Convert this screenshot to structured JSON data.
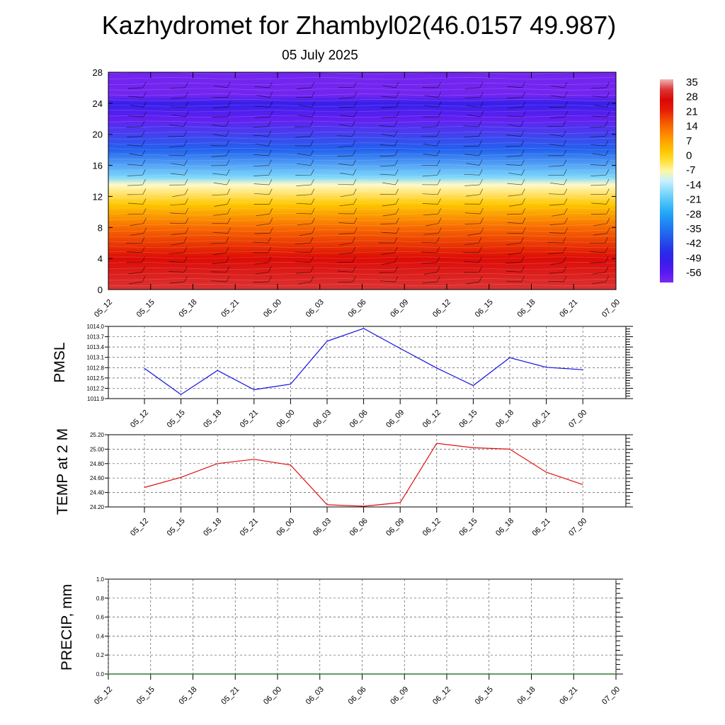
{
  "header": {
    "title": "Kazhydromet for Zhambyl02(46.0157 49.987)",
    "date": "05 July 2025"
  },
  "colors": {
    "pmsl_line": "#1010e0",
    "temp_line": "#e01010",
    "precip_line": "#2e7d32",
    "grid": "#555555",
    "contour": "#ffb0a0"
  },
  "chart_data": [
    {
      "type": "heatmap",
      "name": "cross-section",
      "title": "",
      "xlabel": "",
      "ylabel": "",
      "categories": [
        "05_12",
        "05_15",
        "05_18",
        "05_21",
        "06_00",
        "06_03",
        "06_06",
        "06_09",
        "06_12",
        "06_15",
        "06_18",
        "06_21",
        "07_00"
      ],
      "yticks": [
        0,
        4,
        8,
        12,
        16,
        20,
        24,
        28
      ],
      "ylim": [
        0,
        28
      ],
      "grid": false,
      "wind_barbs": true,
      "temperature_profile": [
        {
          "y": 0,
          "t": 30
        },
        {
          "y": 4,
          "t": 24
        },
        {
          "y": 8,
          "t": 12
        },
        {
          "y": 11,
          "t": 0
        },
        {
          "y": 13.5,
          "t": -10
        },
        {
          "y": 14.5,
          "t": -20
        },
        {
          "y": 18,
          "t": -40
        },
        {
          "y": 22,
          "t": -60
        },
        {
          "y": 24,
          "t": -52
        },
        {
          "y": 25,
          "t": -62
        },
        {
          "y": 28,
          "t": -62
        }
      ],
      "colorbar": {
        "labels": [
          "35",
          "28",
          "21",
          "14",
          "7",
          "0",
          "-7",
          "-14",
          "-21",
          "-28",
          "-35",
          "-42",
          "-49",
          "-56"
        ],
        "placement": "right"
      }
    },
    {
      "type": "line",
      "name": "pmsl",
      "title": "",
      "xlabel": "",
      "ylabel": "PMSL",
      "categories": [
        "05_12",
        "05_15",
        "05_18",
        "05_21",
        "06_00",
        "06_03",
        "06_06",
        "06_09",
        "06_12",
        "06_15",
        "06_18",
        "06_21",
        "07_00"
      ],
      "ylim": [
        1011.9,
        1014.0
      ],
      "yticks": [
        "1014.0",
        "1013.7",
        "1013.4",
        "1013.1",
        "1012.8",
        "1012.5",
        "1012.2",
        "1011.9"
      ],
      "grid": true,
      "series": [
        {
          "values": [
            1012.78,
            1012.02,
            1012.72,
            1012.16,
            1012.32,
            1013.57,
            1013.94,
            1013.36,
            1012.79,
            1012.28,
            1013.09,
            1012.81,
            1012.74
          ]
        }
      ]
    },
    {
      "type": "line",
      "name": "temp",
      "title": "",
      "xlabel": "",
      "ylabel": "TEMP at 2 M",
      "categories": [
        "05_12",
        "05_15",
        "05_18",
        "05_21",
        "06_00",
        "06_03",
        "06_06",
        "06_09",
        "06_12",
        "06_15",
        "06_18",
        "06_21",
        "07_00"
      ],
      "ylim": [
        24.2,
        25.2
      ],
      "yticks": [
        "25.20",
        "25.00",
        "24.80",
        "24.60",
        "24.40",
        "24.20"
      ],
      "grid": true,
      "series": [
        {
          "values": [
            24.47,
            24.61,
            24.8,
            24.86,
            24.78,
            24.23,
            24.21,
            24.26,
            25.08,
            25.02,
            25.0,
            24.68,
            24.51
          ]
        }
      ]
    },
    {
      "type": "line",
      "name": "precip",
      "title": "",
      "xlabel": "",
      "ylabel": "PRECIP, mm",
      "categories": [
        "05_12",
        "05_15",
        "05_18",
        "05_21",
        "06_00",
        "06_03",
        "06_06",
        "06_09",
        "06_12",
        "06_15",
        "06_18",
        "06_21",
        "07_00"
      ],
      "ylim": [
        0,
        1.0
      ],
      "yticks": [
        "1.0",
        "0.8",
        "0.6",
        "0.4",
        "0.2",
        "0.0"
      ],
      "grid": true,
      "series": [
        {
          "values": [
            0,
            0,
            0,
            0,
            0,
            0,
            0,
            0,
            0,
            0,
            0,
            0,
            0
          ]
        }
      ]
    }
  ]
}
